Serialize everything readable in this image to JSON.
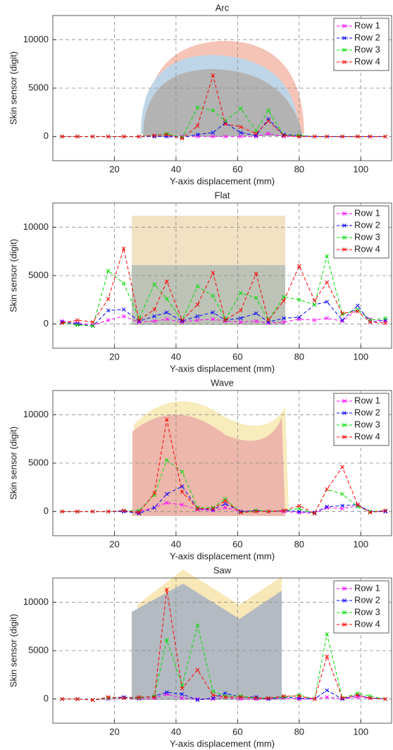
{
  "chart_data": [
    {
      "type": "line",
      "title": "Arc",
      "xlabel": "Y-axis displacement (mm)",
      "ylabel": "Skin sensor (digit)",
      "x": [
        3,
        8,
        13,
        18,
        23,
        28,
        33,
        37,
        42,
        47,
        52,
        56,
        61,
        66,
        70,
        75,
        80,
        85,
        89,
        94,
        99,
        103,
        108
      ],
      "xlim": [
        0,
        110
      ],
      "xticks": [
        20,
        40,
        60,
        80,
        100
      ],
      "ylim": [
        -2500,
        12500
      ],
      "yticks": [
        0,
        5000,
        10000
      ],
      "grid": true,
      "legend": "upper right",
      "series": [
        {
          "name": "Row 1",
          "color": "#ff00ff",
          "values": [
            0,
            0,
            0,
            0,
            0,
            0,
            0,
            0,
            0,
            0,
            0,
            0,
            0,
            0,
            300,
            0,
            0,
            0,
            0,
            0,
            0,
            0,
            0
          ]
        },
        {
          "name": "Row 2",
          "color": "#0000ff",
          "values": [
            0,
            0,
            0,
            0,
            0,
            0,
            0,
            0,
            -100,
            200,
            400,
            1400,
            400,
            100,
            1800,
            200,
            100,
            0,
            0,
            0,
            0,
            0,
            0
          ]
        },
        {
          "name": "Row 3",
          "color": "#00dd00",
          "values": [
            0,
            0,
            0,
            0,
            0,
            0,
            100,
            300,
            -100,
            3000,
            2700,
            1600,
            2900,
            600,
            2700,
            100,
            100,
            0,
            0,
            0,
            0,
            0,
            0
          ]
        },
        {
          "name": "Row 4",
          "color": "#ff0000",
          "values": [
            0,
            0,
            0,
            0,
            0,
            0,
            100,
            200,
            -200,
            1100,
            6300,
            1300,
            1000,
            300,
            1600,
            100,
            0,
            0,
            0,
            0,
            0,
            0,
            0
          ]
        }
      ]
    },
    {
      "type": "line",
      "title": "Flat",
      "xlabel": "Y-axis displacement (mm)",
      "ylabel": "Skin sensor (digit)",
      "x": [
        3,
        8,
        13,
        18,
        23,
        28,
        33,
        37,
        42,
        47,
        52,
        56,
        61,
        66,
        70,
        75,
        80,
        85,
        89,
        94,
        99,
        103,
        108
      ],
      "xlim": [
        0,
        110
      ],
      "xticks": [
        20,
        40,
        60,
        80,
        100
      ],
      "ylim": [
        -2500,
        12500
      ],
      "yticks": [
        0,
        5000,
        10000
      ],
      "grid": true,
      "legend": "upper right",
      "series": [
        {
          "name": "Row 1",
          "color": "#ff00ff",
          "values": [
            300,
            100,
            -100,
            400,
            800,
            200,
            300,
            500,
            200,
            400,
            500,
            300,
            200,
            300,
            100,
            200,
            500,
            400,
            600,
            300,
            1500,
            500,
            300
          ]
        },
        {
          "name": "Row 2",
          "color": "#0000ff",
          "values": [
            200,
            0,
            -200,
            1400,
            1500,
            300,
            800,
            1200,
            300,
            800,
            1200,
            400,
            600,
            1100,
            200,
            600,
            700,
            2000,
            2300,
            400,
            1900,
            200,
            400
          ]
        },
        {
          "name": "Row 3",
          "color": "#00dd00",
          "values": [
            100,
            -100,
            -200,
            5500,
            4200,
            600,
            4100,
            2600,
            400,
            3900,
            2900,
            500,
            3200,
            2700,
            400,
            2800,
            2500,
            2000,
            7000,
            1000,
            1500,
            400,
            600
          ]
        },
        {
          "name": "Row 4",
          "color": "#ff0000",
          "values": [
            100,
            400,
            200,
            2600,
            7800,
            400,
            1500,
            4400,
            400,
            2000,
            5300,
            400,
            1400,
            5200,
            400,
            2400,
            6000,
            2400,
            4300,
            1100,
            1300,
            200,
            100
          ]
        }
      ]
    },
    {
      "type": "line",
      "title": "Wave",
      "xlabel": "Y-axis displacement (mm)",
      "ylabel": "Skin sensor (digit)",
      "x": [
        3,
        8,
        13,
        18,
        23,
        28,
        33,
        37,
        42,
        47,
        52,
        56,
        61,
        66,
        70,
        75,
        80,
        85,
        89,
        94,
        99,
        103,
        108
      ],
      "xlim": [
        0,
        110
      ],
      "xticks": [
        20,
        40,
        60,
        80,
        100
      ],
      "ylim": [
        -2500,
        12500
      ],
      "yticks": [
        0,
        5000,
        10000
      ],
      "grid": true,
      "legend": "upper right",
      "series": [
        {
          "name": "Row 1",
          "color": "#ff00ff",
          "values": [
            0,
            0,
            0,
            0,
            0,
            0,
            400,
            900,
            700,
            200,
            100,
            400,
            0,
            100,
            0,
            0,
            -100,
            -200,
            400,
            300,
            600,
            0,
            0
          ]
        },
        {
          "name": "Row 2",
          "color": "#0000ff",
          "values": [
            0,
            0,
            0,
            0,
            0,
            -200,
            400,
            1800,
            2600,
            300,
            200,
            800,
            0,
            100,
            0,
            100,
            0,
            -100,
            500,
            600,
            700,
            0,
            0
          ]
        },
        {
          "name": "Row 3",
          "color": "#00dd00",
          "values": [
            0,
            0,
            0,
            0,
            100,
            100,
            1700,
            5300,
            4100,
            400,
            400,
            1300,
            -100,
            100,
            0,
            100,
            300,
            -200,
            2300,
            1800,
            500,
            0,
            100
          ]
        },
        {
          "name": "Row 4",
          "color": "#ff0000",
          "values": [
            0,
            0,
            0,
            0,
            100,
            -100,
            1900,
            9500,
            2000,
            300,
            300,
            1100,
            -100,
            0,
            0,
            100,
            600,
            -200,
            2300,
            4600,
            700,
            -100,
            100
          ]
        }
      ]
    },
    {
      "type": "line",
      "title": "Saw",
      "xlabel": "Y-axis displacement (mm)",
      "ylabel": "Skin sensor (digit)",
      "x": [
        3,
        8,
        13,
        18,
        23,
        28,
        33,
        37,
        42,
        47,
        52,
        56,
        61,
        66,
        70,
        75,
        80,
        85,
        89,
        94,
        99,
        103,
        108
      ],
      "xlim": [
        0,
        110
      ],
      "xticks": [
        20,
        40,
        60,
        80,
        100
      ],
      "ylim": [
        -2500,
        12500
      ],
      "yticks": [
        0,
        5000,
        10000
      ],
      "grid": true,
      "legend": "upper right",
      "series": [
        {
          "name": "Row 1",
          "color": "#ff00ff",
          "values": [
            0,
            0,
            -100,
            0,
            100,
            0,
            100,
            500,
            100,
            0,
            0,
            200,
            0,
            0,
            0,
            100,
            0,
            0,
            200,
            0,
            200,
            100,
            0
          ]
        },
        {
          "name": "Row 2",
          "color": "#0000ff",
          "values": [
            0,
            0,
            -100,
            100,
            200,
            100,
            300,
            700,
            500,
            -100,
            100,
            600,
            200,
            200,
            0,
            200,
            100,
            0,
            900,
            0,
            400,
            100,
            0
          ]
        },
        {
          "name": "Row 3",
          "color": "#00dd00",
          "values": [
            0,
            0,
            -100,
            100,
            100,
            100,
            300,
            6100,
            1400,
            7600,
            800,
            300,
            300,
            100,
            100,
            200,
            400,
            0,
            6700,
            100,
            600,
            300,
            0
          ]
        },
        {
          "name": "Row 4",
          "color": "#ff0000",
          "values": [
            0,
            0,
            -100,
            200,
            100,
            200,
            200,
            11300,
            1100,
            3000,
            400,
            200,
            200,
            100,
            100,
            300,
            300,
            0,
            4400,
            100,
            400,
            100,
            0
          ]
        }
      ]
    }
  ]
}
